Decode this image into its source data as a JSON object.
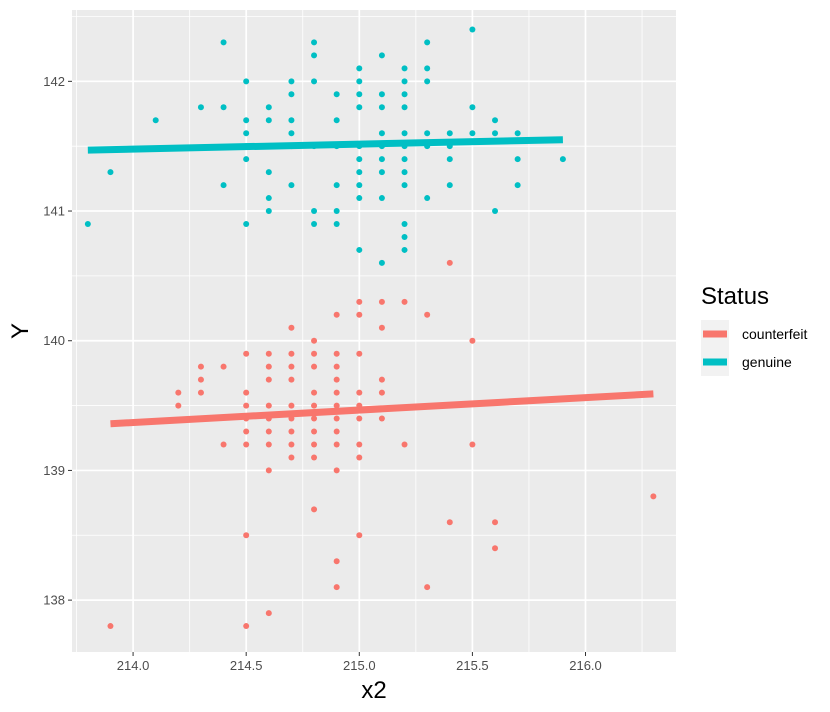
{
  "chart_data": {
    "type": "scatter",
    "xlabel": "x2",
    "ylabel": "Y",
    "xlim": [
      213.73,
      216.4
    ],
    "ylim": [
      137.6,
      142.55
    ],
    "x_ticks": [
      214.0,
      214.5,
      215.0,
      215.5,
      216.0
    ],
    "x_tick_labels": [
      "214.0",
      "214.5",
      "215.0",
      "215.5",
      "216.0"
    ],
    "y_ticks": [
      138,
      139,
      140,
      141,
      142
    ],
    "y_tick_labels": [
      "138",
      "139",
      "140",
      "141",
      "142"
    ],
    "grid": true,
    "legend": {
      "title": "Status",
      "position": "right",
      "entries": [
        "counterfeit",
        "genuine"
      ]
    },
    "series": [
      {
        "name": "counterfeit",
        "color": "#F8766D",
        "trend": {
          "x": [
            213.9,
            216.3
          ],
          "y": [
            139.36,
            139.59
          ]
        },
        "points": [
          [
            213.9,
            137.8
          ],
          [
            214.2,
            139.6
          ],
          [
            214.2,
            139.5
          ],
          [
            214.3,
            139.8
          ],
          [
            214.3,
            139.7
          ],
          [
            214.3,
            139.6
          ],
          [
            214.4,
            139.8
          ],
          [
            214.4,
            139.2
          ],
          [
            214.5,
            139.9
          ],
          [
            214.5,
            139.6
          ],
          [
            214.5,
            139.5
          ],
          [
            214.5,
            139.4
          ],
          [
            214.5,
            139.3
          ],
          [
            214.5,
            139.2
          ],
          [
            214.5,
            138.5
          ],
          [
            214.5,
            137.8
          ],
          [
            214.6,
            139.9
          ],
          [
            214.6,
            139.8
          ],
          [
            214.6,
            139.7
          ],
          [
            214.6,
            139.5
          ],
          [
            214.6,
            139.4
          ],
          [
            214.6,
            139.3
          ],
          [
            214.6,
            139.2
          ],
          [
            214.6,
            139.0
          ],
          [
            214.6,
            137.9
          ],
          [
            214.7,
            140.1
          ],
          [
            214.7,
            139.9
          ],
          [
            214.7,
            139.8
          ],
          [
            214.7,
            139.7
          ],
          [
            214.7,
            139.5
          ],
          [
            214.7,
            139.4
          ],
          [
            214.7,
            139.3
          ],
          [
            214.7,
            139.2
          ],
          [
            214.7,
            139.1
          ],
          [
            214.8,
            140.0
          ],
          [
            214.8,
            139.9
          ],
          [
            214.8,
            139.8
          ],
          [
            214.8,
            139.6
          ],
          [
            214.8,
            139.5
          ],
          [
            214.8,
            139.4
          ],
          [
            214.8,
            139.3
          ],
          [
            214.8,
            139.2
          ],
          [
            214.8,
            139.1
          ],
          [
            214.8,
            138.7
          ],
          [
            214.9,
            140.2
          ],
          [
            214.9,
            139.9
          ],
          [
            214.9,
            139.8
          ],
          [
            214.9,
            139.7
          ],
          [
            214.9,
            139.6
          ],
          [
            214.9,
            139.5
          ],
          [
            214.9,
            139.4
          ],
          [
            214.9,
            139.3
          ],
          [
            214.9,
            139.2
          ],
          [
            214.9,
            139.0
          ],
          [
            214.9,
            138.3
          ],
          [
            214.9,
            138.1
          ],
          [
            215.0,
            140.3
          ],
          [
            215.0,
            140.2
          ],
          [
            215.0,
            139.9
          ],
          [
            215.0,
            139.6
          ],
          [
            215.0,
            139.5
          ],
          [
            215.0,
            139.4
          ],
          [
            215.0,
            139.2
          ],
          [
            215.0,
            139.1
          ],
          [
            215.0,
            138.5
          ],
          [
            215.1,
            140.3
          ],
          [
            215.1,
            140.1
          ],
          [
            215.1,
            139.7
          ],
          [
            215.1,
            139.6
          ],
          [
            215.1,
            139.4
          ],
          [
            215.2,
            140.3
          ],
          [
            215.2,
            139.2
          ],
          [
            215.3,
            140.2
          ],
          [
            215.3,
            138.1
          ],
          [
            215.4,
            140.6
          ],
          [
            215.4,
            138.6
          ],
          [
            215.5,
            140.0
          ],
          [
            215.5,
            139.2
          ],
          [
            215.6,
            138.6
          ],
          [
            215.6,
            138.4
          ],
          [
            216.3,
            138.8
          ]
        ]
      },
      {
        "name": "genuine",
        "color": "#00BFC4",
        "trend": {
          "x": [
            213.8,
            215.9
          ],
          "y": [
            141.47,
            141.55
          ]
        },
        "points": [
          [
            213.8,
            140.9
          ],
          [
            213.9,
            141.3
          ],
          [
            214.1,
            141.7
          ],
          [
            214.3,
            141.8
          ],
          [
            214.4,
            142.3
          ],
          [
            214.4,
            141.8
          ],
          [
            214.4,
            141.2
          ],
          [
            214.5,
            142.0
          ],
          [
            214.5,
            141.7
          ],
          [
            214.5,
            141.6
          ],
          [
            214.5,
            141.5
          ],
          [
            214.5,
            141.4
          ],
          [
            214.5,
            140.9
          ],
          [
            214.6,
            141.8
          ],
          [
            214.6,
            141.7
          ],
          [
            214.6,
            141.5
          ],
          [
            214.6,
            141.3
          ],
          [
            214.6,
            141.1
          ],
          [
            214.6,
            141.0
          ],
          [
            214.7,
            142.0
          ],
          [
            214.7,
            141.9
          ],
          [
            214.7,
            141.7
          ],
          [
            214.7,
            141.6
          ],
          [
            214.7,
            141.5
          ],
          [
            214.7,
            141.2
          ],
          [
            214.8,
            142.3
          ],
          [
            214.8,
            142.2
          ],
          [
            214.8,
            142.0
          ],
          [
            214.8,
            141.5
          ],
          [
            214.8,
            141.0
          ],
          [
            214.8,
            140.9
          ],
          [
            214.9,
            141.9
          ],
          [
            214.9,
            141.7
          ],
          [
            214.9,
            141.5
          ],
          [
            214.9,
            141.2
          ],
          [
            214.9,
            141.0
          ],
          [
            214.9,
            140.9
          ],
          [
            215.0,
            142.1
          ],
          [
            215.0,
            142.0
          ],
          [
            215.0,
            141.9
          ],
          [
            215.0,
            141.8
          ],
          [
            215.0,
            141.5
          ],
          [
            215.0,
            141.4
          ],
          [
            215.0,
            141.3
          ],
          [
            215.0,
            141.2
          ],
          [
            215.0,
            141.1
          ],
          [
            215.0,
            140.7
          ],
          [
            215.1,
            142.2
          ],
          [
            215.1,
            141.9
          ],
          [
            215.1,
            141.8
          ],
          [
            215.1,
            141.6
          ],
          [
            215.1,
            141.5
          ],
          [
            215.1,
            141.4
          ],
          [
            215.1,
            141.3
          ],
          [
            215.1,
            141.1
          ],
          [
            215.1,
            140.6
          ],
          [
            215.2,
            142.1
          ],
          [
            215.2,
            142.0
          ],
          [
            215.2,
            141.9
          ],
          [
            215.2,
            141.8
          ],
          [
            215.2,
            141.6
          ],
          [
            215.2,
            141.5
          ],
          [
            215.2,
            141.4
          ],
          [
            215.2,
            141.3
          ],
          [
            215.2,
            141.2
          ],
          [
            215.2,
            140.9
          ],
          [
            215.2,
            140.8
          ],
          [
            215.2,
            140.7
          ],
          [
            215.3,
            142.3
          ],
          [
            215.3,
            142.1
          ],
          [
            215.3,
            142.0
          ],
          [
            215.3,
            141.6
          ],
          [
            215.3,
            141.5
          ],
          [
            215.3,
            141.1
          ],
          [
            215.4,
            141.6
          ],
          [
            215.4,
            141.5
          ],
          [
            215.4,
            141.4
          ],
          [
            215.4,
            141.2
          ],
          [
            215.5,
            142.4
          ],
          [
            215.5,
            141.8
          ],
          [
            215.5,
            141.6
          ],
          [
            215.6,
            141.7
          ],
          [
            215.6,
            141.6
          ],
          [
            215.6,
            141.0
          ],
          [
            215.7,
            141.6
          ],
          [
            215.7,
            141.4
          ],
          [
            215.7,
            141.2
          ],
          [
            215.9,
            141.4
          ]
        ]
      }
    ]
  }
}
